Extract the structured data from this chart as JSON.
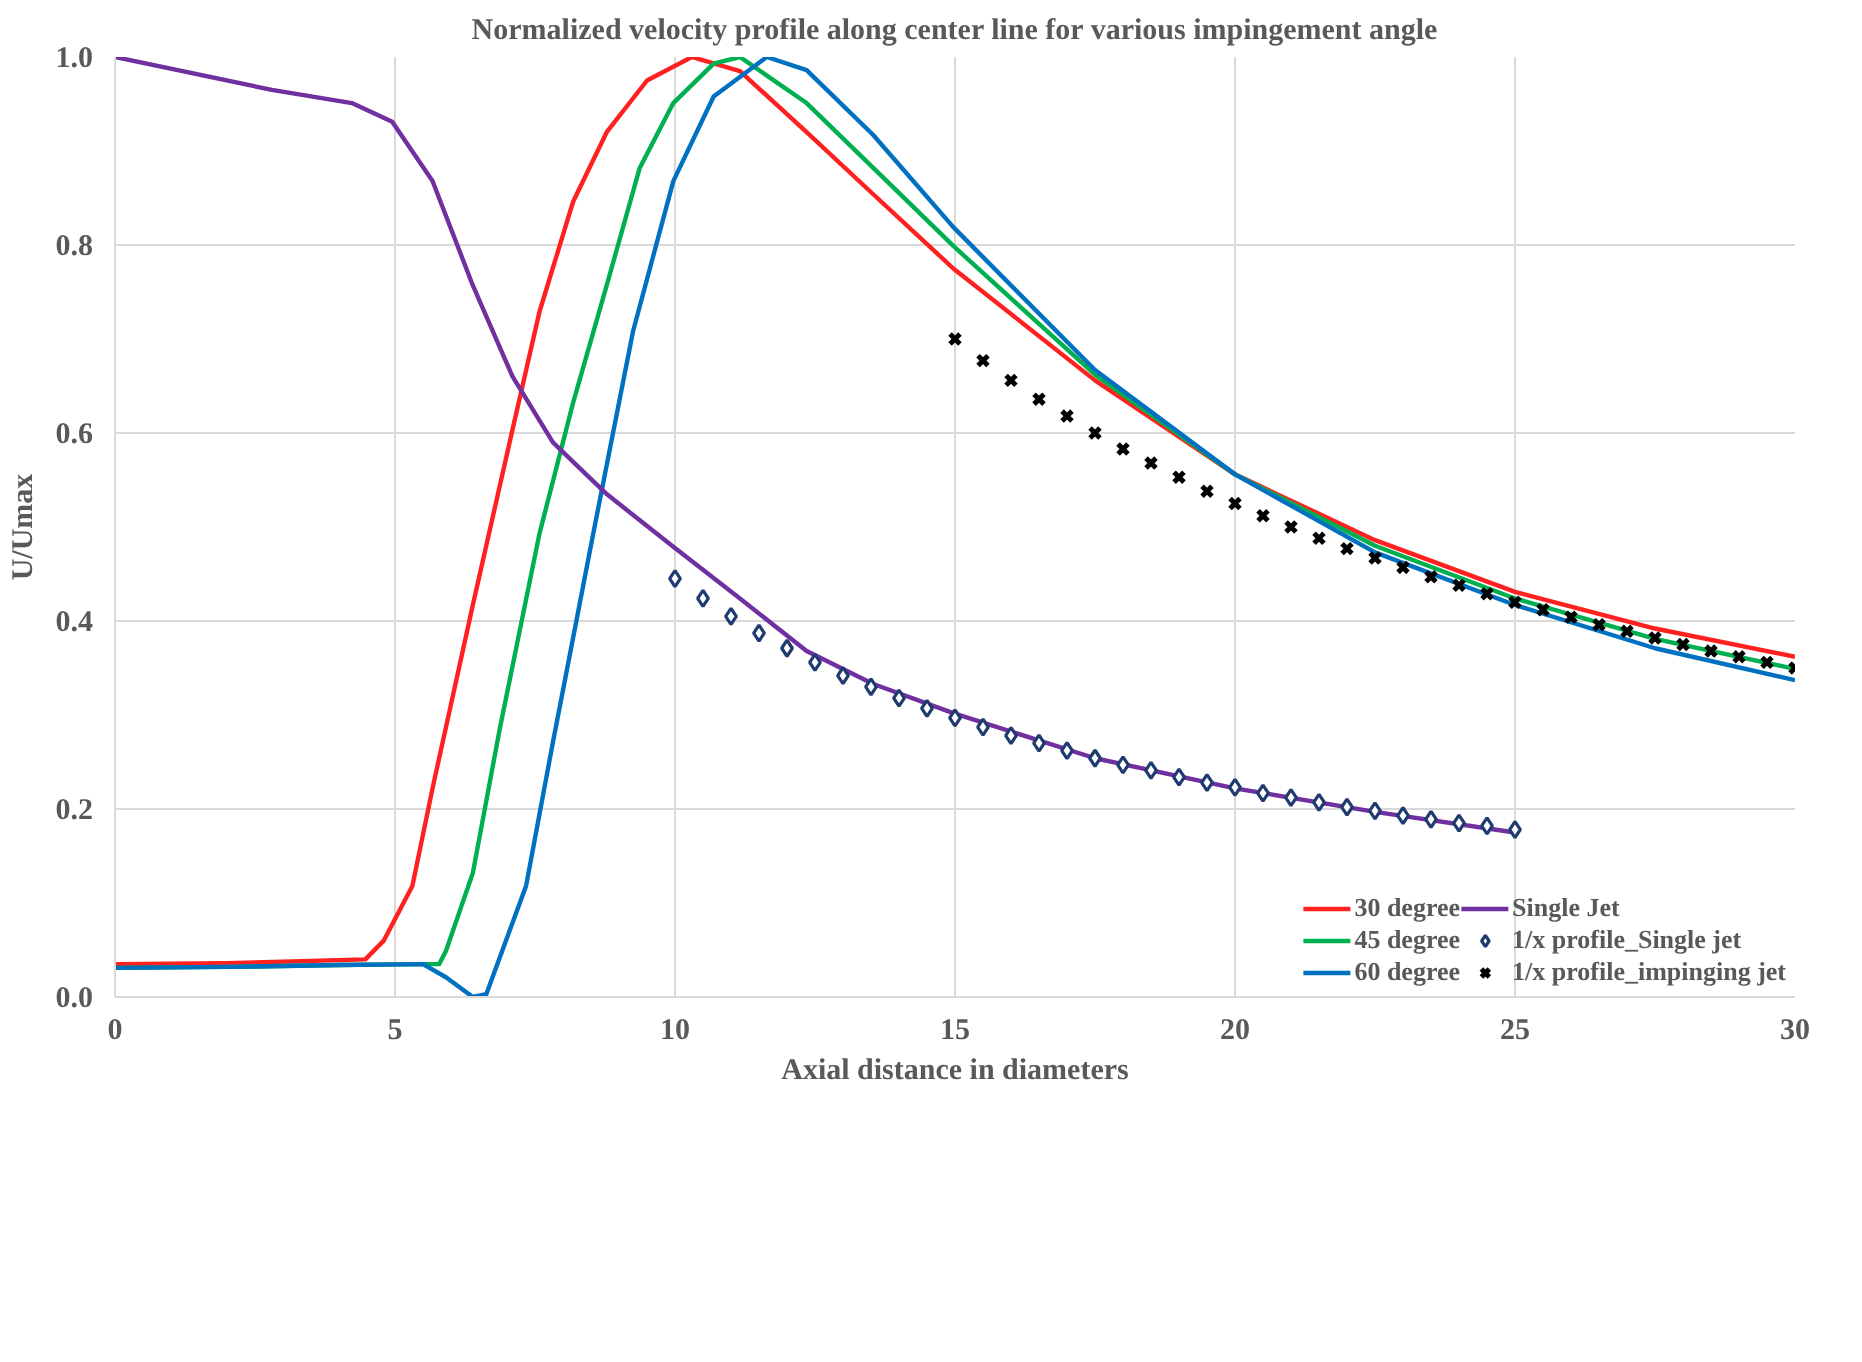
{
  "chart_data": {
    "type": "line",
    "title": "Normalized velocity profile along center line for various impingement angle",
    "xlabel": "Axial distance in diameters",
    "ylabel": "U/Umax",
    "xlim": [
      0,
      30
    ],
    "ylim": [
      0,
      1
    ],
    "xticks": [
      0,
      5,
      10,
      15,
      20,
      25,
      30
    ],
    "yticks": [
      {
        "value": 0,
        "label": "0.0"
      },
      {
        "value": 0.2,
        "label": "0.2"
      },
      {
        "value": 0.4,
        "label": "0.4"
      },
      {
        "value": 0.6,
        "label": "0.6"
      },
      {
        "value": 0.8,
        "label": "0.8"
      },
      {
        "value": 1,
        "label": "1.0"
      }
    ],
    "grid": true,
    "legend": "bottom right",
    "line_style": "solid",
    "series": [
      {
        "name": "30 degree",
        "color": "#ff2020",
        "marker": "none",
        "x": [
          0,
          2,
          4.47,
          4.8,
          5.31,
          5.67,
          6.39,
          7.1,
          7.58,
          8.18,
          8.78,
          9.5,
          10.3,
          11.16,
          12.35,
          13.54,
          14.97,
          17.5,
          20,
          22.5,
          25,
          27.5,
          30
        ],
        "values": [
          0.035,
          0.036,
          0.04,
          0.06,
          0.118,
          0.222,
          0.417,
          0.604,
          0.729,
          0.846,
          0.92,
          0.975,
          1.0,
          0.985,
          0.92,
          0.854,
          0.775,
          0.656,
          0.556,
          0.486,
          0.431,
          0.392,
          0.362
        ]
      },
      {
        "name": "45 degree",
        "color": "#00b050",
        "marker": "none",
        "x": [
          0,
          2,
          4,
          5.5,
          5.79,
          5.91,
          6.39,
          6.87,
          7.58,
          8.18,
          8.78,
          9.37,
          9.97,
          10.69,
          11.16,
          12.35,
          13.54,
          14.97,
          17.5,
          20,
          22.5,
          25,
          27.5,
          30
        ],
        "values": [
          0.031,
          0.032,
          0.034,
          0.035,
          0.035,
          0.049,
          0.132,
          0.285,
          0.493,
          0.632,
          0.757,
          0.882,
          0.951,
          0.993,
          1.0,
          0.951,
          0.882,
          0.799,
          0.662,
          0.556,
          0.48,
          0.424,
          0.381,
          0.349
        ]
      },
      {
        "name": "60 degree",
        "color": "#0070c0",
        "marker": "none",
        "x": [
          0,
          2,
          4,
          5.5,
          5.91,
          6.39,
          6.63,
          7.34,
          7.82,
          8.54,
          9.25,
          9.97,
          10.69,
          11.64,
          12.35,
          13.54,
          14.97,
          17.5,
          20,
          22.5,
          25,
          27.5,
          30
        ],
        "values": [
          0.031,
          0.032,
          0.034,
          0.035,
          0.021,
          0.0,
          0.003,
          0.118,
          0.271,
          0.493,
          0.708,
          0.868,
          0.958,
          1.0,
          0.986,
          0.917,
          0.819,
          0.667,
          0.556,
          0.473,
          0.417,
          0.371,
          0.337
        ]
      },
      {
        "name": "Single Jet",
        "color": "#7030a0",
        "marker": "none",
        "x": [
          0,
          2.8,
          4.23,
          4.95,
          5.67,
          6.39,
          7.1,
          7.82,
          8.78,
          9.97,
          11.16,
          12.35,
          13.54,
          14.97,
          17.5,
          20,
          22.5,
          25
        ],
        "values": [
          1.0,
          0.965,
          0.951,
          0.931,
          0.868,
          0.757,
          0.66,
          0.59,
          0.535,
          0.479,
          0.424,
          0.368,
          0.333,
          0.302,
          0.254,
          0.222,
          0.197,
          0.175
        ]
      },
      {
        "name": "1/x profile_Single jet",
        "color": "#1f3a6e",
        "type": "scatter",
        "marker": "diamond",
        "x": [
          10,
          10.5,
          11,
          11.5,
          12,
          12.5,
          13,
          13.5,
          14,
          14.5,
          15,
          15.5,
          16,
          16.5,
          17,
          17.5,
          18,
          18.5,
          19,
          19.5,
          20,
          20.5,
          21,
          21.5,
          22,
          22.5,
          23,
          23.5,
          24,
          24.5,
          25
        ],
        "values": [
          0.445,
          0.424,
          0.405,
          0.387,
          0.371,
          0.356,
          0.342,
          0.33,
          0.318,
          0.307,
          0.297,
          0.287,
          0.278,
          0.27,
          0.262,
          0.254,
          0.247,
          0.241,
          0.234,
          0.228,
          0.223,
          0.217,
          0.212,
          0.207,
          0.202,
          0.198,
          0.193,
          0.189,
          0.185,
          0.182,
          0.178
        ]
      },
      {
        "name": "1/x profile_impinging jet",
        "color": "#000000",
        "type": "scatter",
        "marker": "cross",
        "x": [
          15,
          15.5,
          16,
          16.5,
          17,
          17.5,
          18,
          18.5,
          19,
          19.5,
          20,
          20.5,
          21,
          21.5,
          22,
          22.5,
          23,
          23.5,
          24,
          24.5,
          25,
          25.5,
          26,
          26.5,
          27,
          27.5,
          28,
          28.5,
          29,
          29.5,
          30
        ],
        "values": [
          0.7,
          0.677,
          0.656,
          0.636,
          0.618,
          0.6,
          0.583,
          0.568,
          0.553,
          0.538,
          0.525,
          0.512,
          0.5,
          0.488,
          0.477,
          0.467,
          0.457,
          0.447,
          0.438,
          0.429,
          0.42,
          0.412,
          0.404,
          0.396,
          0.389,
          0.382,
          0.375,
          0.368,
          0.362,
          0.356,
          0.35
        ]
      }
    ]
  }
}
